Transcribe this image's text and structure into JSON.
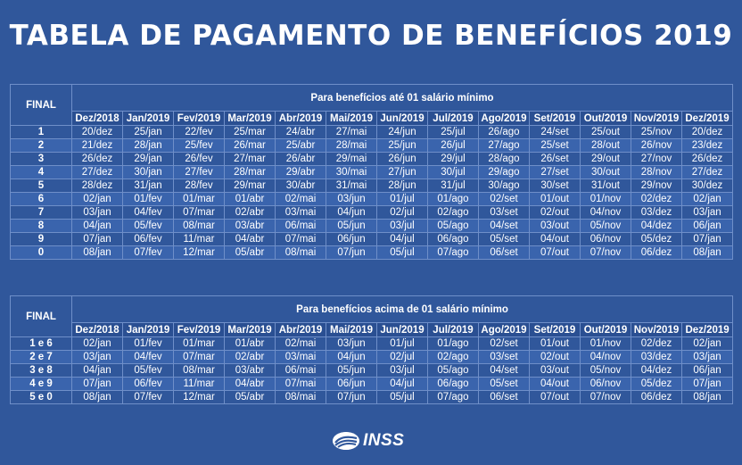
{
  "title": "TABELA DE PAGAMENTO DE BENEFÍCIOS 2019",
  "final_label": "FINAL",
  "months": [
    "Dez/2018",
    "Jan/2019",
    "Fev/2019",
    "Mar/2019",
    "Abr/2019",
    "Mai/2019",
    "Jun/2019",
    "Jul/2019",
    "Ago/2019",
    "Set/2019",
    "Out/2019",
    "Nov/2019",
    "Dez/2019"
  ],
  "table1": {
    "caption": "Para benefícios até 01 salário mínimo",
    "rows": [
      {
        "final": "1",
        "dates": [
          "20/dez",
          "25/jan",
          "22/fev",
          "25/mar",
          "24/abr",
          "27/mai",
          "24/jun",
          "25/jul",
          "26/ago",
          "24/set",
          "25/out",
          "25/nov",
          "20/dez"
        ]
      },
      {
        "final": "2",
        "dates": [
          "21/dez",
          "28/jan",
          "25/fev",
          "26/mar",
          "25/abr",
          "28/mai",
          "25/jun",
          "26/jul",
          "27/ago",
          "25/set",
          "28/out",
          "26/nov",
          "23/dez"
        ]
      },
      {
        "final": "3",
        "dates": [
          "26/dez",
          "29/jan",
          "26/fev",
          "27/mar",
          "26/abr",
          "29/mai",
          "26/jun",
          "29/jul",
          "28/ago",
          "26/set",
          "29/out",
          "27/nov",
          "26/dez"
        ]
      },
      {
        "final": "4",
        "dates": [
          "27/dez",
          "30/jan",
          "27/fev",
          "28/mar",
          "29/abr",
          "30/mai",
          "27/jun",
          "30/jul",
          "29/ago",
          "27/set",
          "30/out",
          "28/nov",
          "27/dez"
        ]
      },
      {
        "final": "5",
        "dates": [
          "28/dez",
          "31/jan",
          "28/fev",
          "29/mar",
          "30/abr",
          "31/mai",
          "28/jun",
          "31/jul",
          "30/ago",
          "30/set",
          "31/out",
          "29/nov",
          "30/dez"
        ]
      },
      {
        "final": "6",
        "dates": [
          "02/jan",
          "01/fev",
          "01/mar",
          "01/abr",
          "02/mai",
          "03/jun",
          "01/jul",
          "01/ago",
          "02/set",
          "01/out",
          "01/nov",
          "02/dez",
          "02/jan"
        ]
      },
      {
        "final": "7",
        "dates": [
          "03/jan",
          "04/fev",
          "07/mar",
          "02/abr",
          "03/mai",
          "04/jun",
          "02/jul",
          "02/ago",
          "03/set",
          "02/out",
          "04/nov",
          "03/dez",
          "03/jan"
        ]
      },
      {
        "final": "8",
        "dates": [
          "04/jan",
          "05/fev",
          "08/mar",
          "03/abr",
          "06/mai",
          "05/jun",
          "03/jul",
          "05/ago",
          "04/set",
          "03/out",
          "05/nov",
          "04/dez",
          "06/jan"
        ]
      },
      {
        "final": "9",
        "dates": [
          "07/jan",
          "06/fev",
          "11/mar",
          "04/abr",
          "07/mai",
          "06/jun",
          "04/jul",
          "06/ago",
          "05/set",
          "04/out",
          "06/nov",
          "05/dez",
          "07/jan"
        ]
      },
      {
        "final": "0",
        "dates": [
          "08/jan",
          "07/fev",
          "12/mar",
          "05/abr",
          "08/mai",
          "07/jun",
          "05/jul",
          "07/ago",
          "06/set",
          "07/out",
          "07/nov",
          "06/dez",
          "08/jan"
        ]
      }
    ]
  },
  "table2": {
    "caption": "Para benefícios acima de 01 salário mínimo",
    "rows": [
      {
        "final": "1 e 6",
        "dates": [
          "02/jan",
          "01/fev",
          "01/mar",
          "01/abr",
          "02/mai",
          "03/jun",
          "01/jul",
          "01/ago",
          "02/set",
          "01/out",
          "01/nov",
          "02/dez",
          "02/jan"
        ]
      },
      {
        "final": "2 e 7",
        "dates": [
          "03/jan",
          "04/fev",
          "07/mar",
          "02/abr",
          "03/mai",
          "04/jun",
          "02/jul",
          "02/ago",
          "03/set",
          "02/out",
          "04/nov",
          "03/dez",
          "03/jan"
        ]
      },
      {
        "final": "3 e 8",
        "dates": [
          "04/jan",
          "05/fev",
          "08/mar",
          "03/abr",
          "06/mai",
          "05/jun",
          "03/jul",
          "05/ago",
          "04/set",
          "03/out",
          "05/nov",
          "04/dez",
          "06/jan"
        ]
      },
      {
        "final": "4 e 9",
        "dates": [
          "07/jan",
          "06/fev",
          "11/mar",
          "04/abr",
          "07/mai",
          "06/jun",
          "04/jul",
          "06/ago",
          "05/set",
          "04/out",
          "06/nov",
          "05/dez",
          "07/jan"
        ]
      },
      {
        "final": "5 e 0",
        "dates": [
          "08/jan",
          "07/fev",
          "12/mar",
          "05/abr",
          "08/mai",
          "07/jun",
          "05/jul",
          "07/ago",
          "06/set",
          "07/out",
          "07/nov",
          "06/dez",
          "08/jan"
        ]
      }
    ]
  },
  "logo": {
    "text": "INSS",
    "icon": "inss-logo-icon"
  }
}
